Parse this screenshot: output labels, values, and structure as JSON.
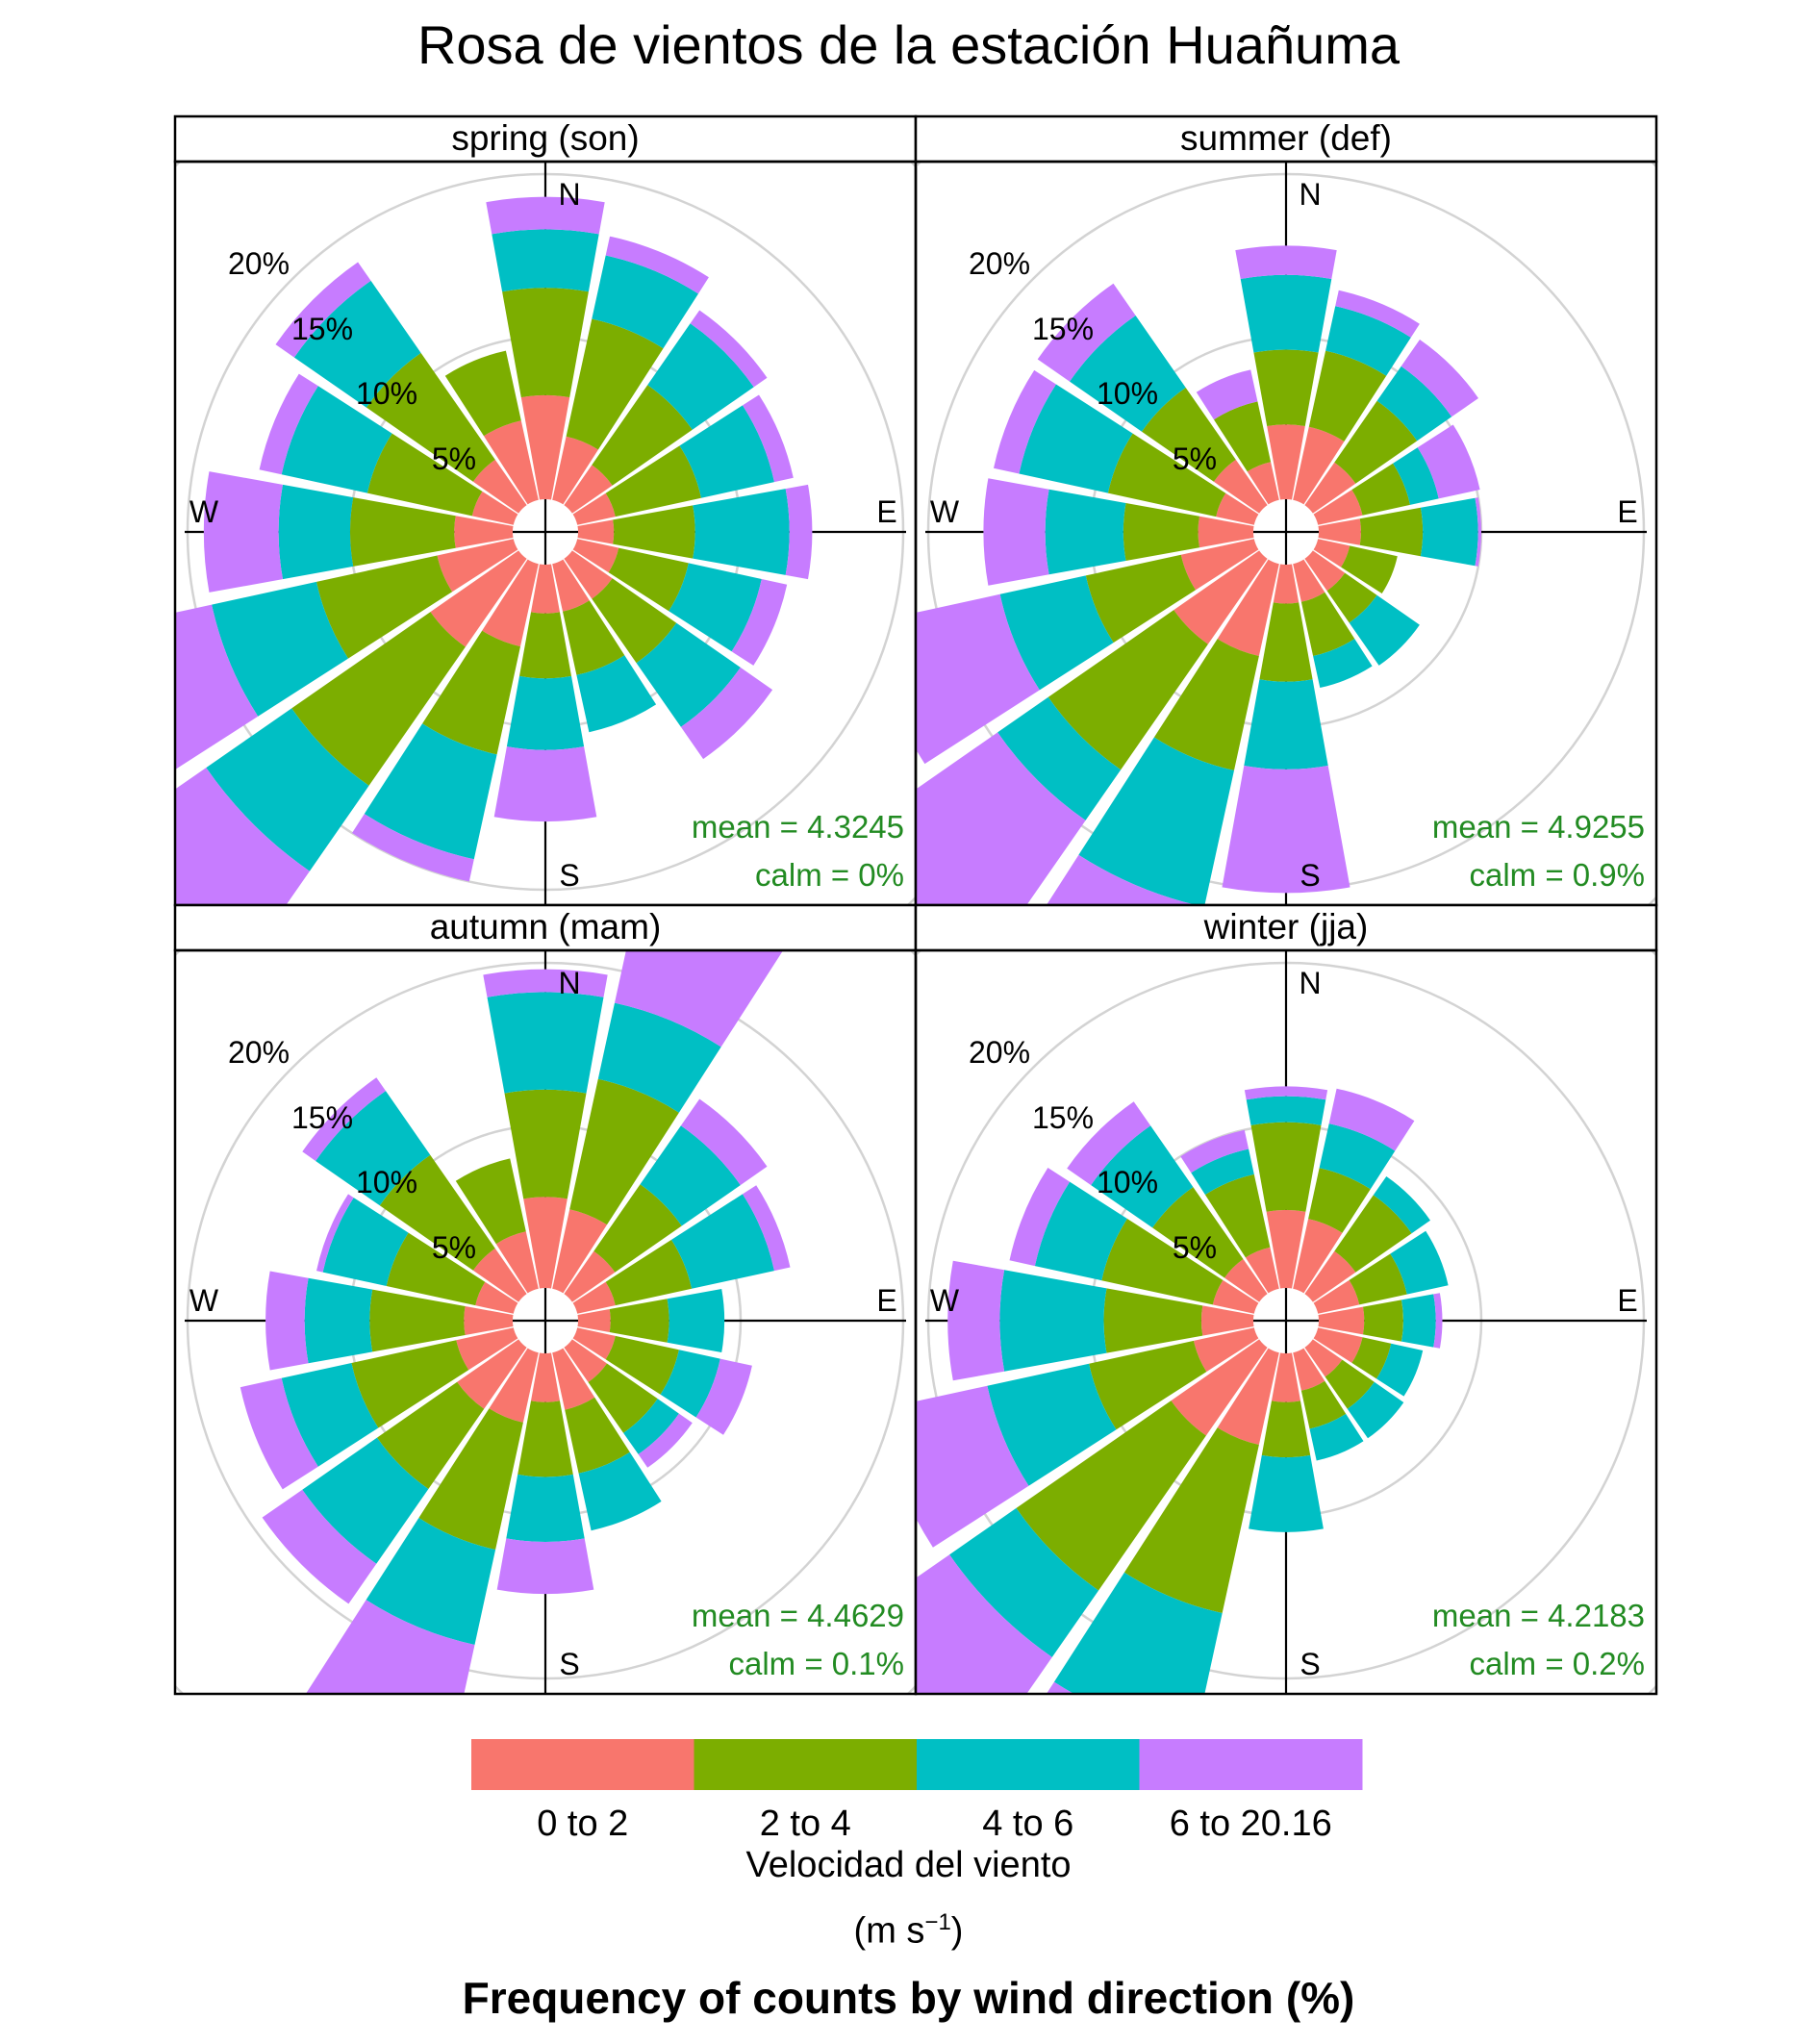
{
  "title": "Rosa de vientos de la estación Huañuma",
  "footer": "Frequency of counts by wind direction (%)",
  "legend": {
    "title": "Velocidad del viento",
    "unit_main": "(m s",
    "unit_sup": "−1",
    "unit_end": ")",
    "items": [
      {
        "label": "0 to 2",
        "color": "#F8766D"
      },
      {
        "label": "2 to 4",
        "color": "#7CAE00"
      },
      {
        "label": "4 to 6",
        "color": "#00BFC4"
      },
      {
        "label": "6 to 20.16",
        "color": "#C77CFF"
      }
    ]
  },
  "chart_data": {
    "type": "wind-rose",
    "directions": [
      "N",
      "NNE",
      "NE",
      "ENE",
      "E",
      "ESE",
      "SE",
      "SSE",
      "S",
      "SSW",
      "SW",
      "WSW",
      "W",
      "WNW",
      "NW",
      "NNW"
    ],
    "direction_angles": [
      0,
      22.5,
      45,
      67.5,
      90,
      112.5,
      135,
      157.5,
      180,
      202.5,
      225,
      247.5,
      270,
      292.5,
      315,
      337.5
    ],
    "speed_bins": [
      "0 to 2",
      "2 to 4",
      "4 to 6",
      "6 to 20.16"
    ],
    "ring_ticks": [
      "5%",
      "10%",
      "15%",
      "20%"
    ],
    "ring_values": [
      5,
      10,
      15,
      20
    ],
    "compass_labels": [
      "N",
      "E",
      "S",
      "W"
    ],
    "panels": [
      {
        "name": "spring (son)",
        "mean": "mean = 4.3245",
        "calm": "calm = 0%",
        "cumulative": [
          [
            3.2,
            6.5,
            8.3,
            9.3
          ],
          [
            2.0,
            5.7,
            7.7,
            8.3
          ],
          [
            1.5,
            4.5,
            6.8,
            7.3
          ],
          [
            1.2,
            3.9,
            6.2,
            6.8
          ],
          [
            1.1,
            3.6,
            6.5,
            7.2
          ],
          [
            1.3,
            3.5,
            5.8,
            6.6
          ],
          [
            1.5,
            3.9,
            6.3,
            7.5
          ],
          [
            1.5,
            3.5,
            5.3,
            5.3
          ],
          [
            1.5,
            3.5,
            5.7,
            7.9
          ],
          [
            2.6,
            6.0,
            9.3,
            10.0
          ],
          [
            3.3,
            8.5,
            11.7,
            17.6
          ],
          [
            2.4,
            6.2,
            9.5,
            12.6
          ],
          [
            1.8,
            5.0,
            7.2,
            9.5
          ],
          [
            1.3,
            4.6,
            7.3,
            8.0
          ],
          [
            1.7,
            5.7,
            8.4,
            9.1
          ],
          [
            2.5,
            4.7,
            4.7,
            4.7
          ]
        ]
      },
      {
        "name": "summer (def)",
        "mean": "mean = 4.9255",
        "calm": "calm = 0.9%",
        "cumulative": [
          [
            2.3,
            4.6,
            6.9,
            7.8
          ],
          [
            2.3,
            4.7,
            6.1,
            6.6
          ],
          [
            1.6,
            3.9,
            5.2,
            6.2
          ],
          [
            1.4,
            2.9,
            3.8,
            5.1
          ],
          [
            1.3,
            3.2,
            4.9,
            5.0
          ],
          [
            1.0,
            2.5,
            2.5,
            2.5
          ],
          [
            1.2,
            2.4,
            4.0,
            4.0
          ],
          [
            1.2,
            2.9,
            3.9,
            3.9
          ],
          [
            1.2,
            3.6,
            6.3,
            10.1
          ],
          [
            2.9,
            6.5,
            10.8,
            15.8
          ],
          [
            3.2,
            7.9,
            9.8,
            17.5
          ],
          [
            2.3,
            5.3,
            8.0,
            12.2
          ],
          [
            1.7,
            4.0,
            6.4,
            8.3
          ],
          [
            1.2,
            4.6,
            7.4,
            8.2
          ],
          [
            1.7,
            4.4,
            7.1,
            8.3
          ],
          [
            1.2,
            3.1,
            3.1,
            4.1
          ]
        ]
      },
      {
        "name": "autumn (mam)",
        "mean": "mean = 4.4629",
        "calm": "calm = 0.1%",
        "cumulative": [
          [
            2.8,
            6.1,
            9.1,
            9.8
          ],
          [
            2.5,
            6.6,
            9.0,
            12.8
          ],
          [
            1.6,
            4.1,
            6.3,
            7.3
          ],
          [
            1.2,
            3.6,
            6.2,
            6.7
          ],
          [
            1.0,
            2.8,
            4.5,
            4.5
          ],
          [
            1.2,
            3.2,
            4.5,
            5.5
          ],
          [
            1.3,
            3.2,
            4.0,
            4.5
          ],
          [
            1.8,
            3.8,
            5.6,
            5.6
          ],
          [
            1.5,
            3.8,
            5.8,
            7.4
          ],
          [
            2.2,
            6.2,
            9.2,
            14.0
          ],
          [
            2.3,
            5.3,
            8.1,
            9.6
          ],
          [
            1.8,
            5.1,
            7.3,
            8.6
          ],
          [
            1.5,
            4.4,
            6.4,
            7.6
          ],
          [
            1.2,
            4.0,
            6.0,
            6.2
          ],
          [
            1.7,
            5.2,
            7.6,
            8.1
          ],
          [
            1.8,
            4.1,
            4.1,
            4.1
          ]
        ]
      },
      {
        "name": "winter (jja)",
        "mean": "mean = 4.2183",
        "calm": "calm = 0.2%",
        "cumulative": [
          [
            2.4,
            5.1,
            5.9,
            6.2
          ],
          [
            2.2,
            3.8,
            5.2,
            6.3
          ],
          [
            1.6,
            3.7,
            4.4,
            4.4
          ],
          [
            1.3,
            2.8,
            4.1,
            4.1
          ],
          [
            1.4,
            2.6,
            3.6,
            3.8
          ],
          [
            1.4,
            2.3,
            3.3,
            3.3
          ],
          [
            1.1,
            2.3,
            3.4,
            3.4
          ],
          [
            1.2,
            2.4,
            3.4,
            3.4
          ],
          [
            1.5,
            3.2,
            5.5,
            5.5
          ],
          [
            2.9,
            8.2,
            12.2,
            13.8
          ],
          [
            3.3,
            9.1,
            11.6,
            16.4
          ],
          [
            1.9,
            5.2,
            8.4,
            11.9
          ],
          [
            1.6,
            4.6,
            7.8,
            9.4
          ],
          [
            1.3,
            4.8,
            6.9,
            7.7
          ],
          [
            1.3,
            4.0,
            6.3,
            7.2
          ],
          [
            1.3,
            3.6,
            4.4,
            5.0
          ]
        ]
      }
    ]
  }
}
